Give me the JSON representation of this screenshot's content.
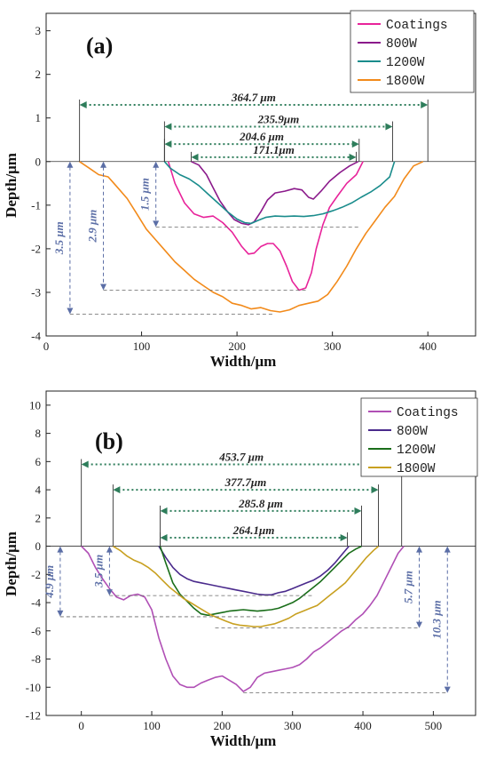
{
  "chart_data": [
    {
      "type": "line",
      "panel_label": "(a)",
      "xlabel": "Width/μm",
      "ylabel": "Depth/μm",
      "xlim": [
        0,
        450
      ],
      "ylim": [
        -4,
        3.4
      ],
      "xticks": [
        0,
        100,
        200,
        300,
        400
      ],
      "yticks": [
        -4,
        -3,
        -2,
        -1,
        0,
        1,
        2,
        3
      ],
      "legend_position": "top-right",
      "legend": [
        "Coatings",
        "800W",
        "1200W",
        "1800W"
      ],
      "series": [
        {
          "name": "Coatings",
          "color": "#e8239a",
          "x": [
            128,
            135,
            145,
            155,
            165,
            175,
            185,
            195,
            205,
            212,
            218,
            225,
            232,
            238,
            245,
            252,
            258,
            265,
            272,
            278,
            283,
            290,
            297,
            305,
            315,
            325,
            332
          ],
          "y": [
            0,
            -0.5,
            -0.95,
            -1.2,
            -1.28,
            -1.25,
            -1.4,
            -1.62,
            -1.95,
            -2.12,
            -2.1,
            -1.95,
            -1.88,
            -1.88,
            -2.05,
            -2.4,
            -2.75,
            -2.95,
            -2.9,
            -2.55,
            -2.0,
            -1.45,
            -1.05,
            -0.8,
            -0.5,
            -0.3,
            0
          ]
        },
        {
          "name": "800W",
          "color": "#8b1a8b",
          "x": [
            152,
            160,
            168,
            175,
            182,
            190,
            197,
            205,
            212,
            218,
            225,
            232,
            240,
            250,
            260,
            268,
            275,
            280,
            288,
            297,
            308,
            318,
            327
          ],
          "y": [
            0,
            -0.08,
            -0.3,
            -0.6,
            -0.9,
            -1.15,
            -1.33,
            -1.42,
            -1.45,
            -1.38,
            -1.15,
            -0.88,
            -0.72,
            -0.68,
            -0.62,
            -0.65,
            -0.82,
            -0.86,
            -0.68,
            -0.45,
            -0.25,
            -0.1,
            0
          ]
        },
        {
          "name": "1200W",
          "color": "#1a8c8c",
          "x": [
            124,
            130,
            140,
            150,
            160,
            170,
            180,
            190,
            200,
            208,
            215,
            222,
            230,
            240,
            250,
            260,
            270,
            280,
            290,
            300,
            310,
            320,
            330,
            340,
            350,
            360,
            365
          ],
          "y": [
            0,
            -0.15,
            -0.3,
            -0.4,
            -0.55,
            -0.75,
            -0.95,
            -1.15,
            -1.32,
            -1.4,
            -1.42,
            -1.35,
            -1.28,
            -1.25,
            -1.26,
            -1.25,
            -1.26,
            -1.24,
            -1.2,
            -1.13,
            -1.05,
            -0.95,
            -0.82,
            -0.7,
            -0.55,
            -0.35,
            0
          ]
        },
        {
          "name": "1800W",
          "color": "#f28a1a",
          "x": [
            35,
            45,
            55,
            65,
            75,
            85,
            95,
            105,
            115,
            125,
            135,
            145,
            155,
            165,
            175,
            185,
            195,
            205,
            215,
            225,
            235,
            245,
            255,
            265,
            275,
            285,
            295,
            305,
            315,
            325,
            335,
            345,
            355,
            365,
            375,
            385,
            395
          ],
          "y": [
            0,
            -0.15,
            -0.3,
            -0.35,
            -0.6,
            -0.85,
            -1.2,
            -1.55,
            -1.8,
            -2.05,
            -2.3,
            -2.5,
            -2.7,
            -2.85,
            -3.0,
            -3.1,
            -3.25,
            -3.3,
            -3.38,
            -3.35,
            -3.42,
            -3.45,
            -3.4,
            -3.3,
            -3.25,
            -3.2,
            -3.05,
            -2.75,
            -2.4,
            -2.0,
            -1.65,
            -1.35,
            -1.05,
            -0.8,
            -0.4,
            -0.1,
            0
          ]
        }
      ],
      "annotations": {
        "widths": [
          {
            "label": "364.7 μm",
            "x1": 35,
            "x2": 400,
            "y": 1.3
          },
          {
            "label": "235.9μm",
            "x1": 124,
            "x2": 363,
            "y": 0.8
          },
          {
            "label": "204.6 μm",
            "x1": 124,
            "x2": 328,
            "y": 0.4
          },
          {
            "label": "171.1μm",
            "x1": 152,
            "x2": 325,
            "y": 0.1
          }
        ],
        "depths": [
          {
            "label": "3.5 μm",
            "x": 25,
            "y": -3.5
          },
          {
            "label": "2.9 μm",
            "x": 60,
            "y": -2.95
          },
          {
            "label": "1.5 μm",
            "x": 115,
            "y": -1.5
          }
        ]
      }
    },
    {
      "type": "line",
      "panel_label": "(b)",
      "xlabel": "Width/μm",
      "ylabel": "Depth/μm",
      "xlim": [
        -50,
        560
      ],
      "ylim": [
        -12,
        11
      ],
      "xticks": [
        0,
        100,
        200,
        300,
        400,
        500
      ],
      "yticks": [
        -12,
        -10,
        -8,
        -6,
        -4,
        -2,
        0,
        2,
        4,
        6,
        8,
        10
      ],
      "legend_position": "top-right",
      "legend": [
        "Coatings",
        "800W",
        "1200W",
        "1800W"
      ],
      "series": [
        {
          "name": "Coatings",
          "color": "#b04fb5",
          "x": [
            0,
            10,
            20,
            30,
            40,
            50,
            60,
            70,
            80,
            90,
            100,
            110,
            120,
            130,
            140,
            150,
            160,
            170,
            180,
            190,
            200,
            210,
            220,
            230,
            240,
            250,
            260,
            270,
            280,
            290,
            300,
            310,
            320,
            330,
            340,
            350,
            360,
            370,
            380,
            390,
            400,
            410,
            420,
            430,
            440,
            450,
            458
          ],
          "y": [
            0,
            -0.5,
            -1.5,
            -2.3,
            -3.0,
            -3.6,
            -3.8,
            -3.5,
            -3.4,
            -3.6,
            -4.5,
            -6.5,
            -8.0,
            -9.2,
            -9.8,
            -10.0,
            -10.0,
            -9.7,
            -9.5,
            -9.3,
            -9.2,
            -9.5,
            -9.8,
            -10.3,
            -10.0,
            -9.3,
            -9.0,
            -8.9,
            -8.8,
            -8.7,
            -8.6,
            -8.4,
            -8.0,
            -7.5,
            -7.2,
            -6.8,
            -6.4,
            -6.0,
            -5.7,
            -5.2,
            -4.8,
            -4.2,
            -3.5,
            -2.5,
            -1.5,
            -0.5,
            0
          ]
        },
        {
          "name": "800W",
          "color": "#4a2a8c",
          "x": [
            110,
            120,
            130,
            140,
            150,
            160,
            170,
            180,
            190,
            200,
            210,
            220,
            230,
            240,
            250,
            260,
            270,
            280,
            290,
            300,
            310,
            320,
            330,
            340,
            350,
            360,
            370,
            380
          ],
          "y": [
            0,
            -0.8,
            -1.5,
            -2.0,
            -2.3,
            -2.5,
            -2.6,
            -2.7,
            -2.8,
            -2.9,
            -3.0,
            -3.1,
            -3.2,
            -3.3,
            -3.4,
            -3.45,
            -3.45,
            -3.3,
            -3.2,
            -3.0,
            -2.8,
            -2.6,
            -2.4,
            -2.1,
            -1.7,
            -1.2,
            -0.6,
            0
          ]
        },
        {
          "name": "1200W",
          "color": "#1a6e1a",
          "x": [
            112,
            120,
            130,
            140,
            150,
            160,
            170,
            180,
            190,
            200,
            210,
            220,
            230,
            240,
            250,
            260,
            270,
            280,
            290,
            300,
            310,
            320,
            330,
            340,
            350,
            360,
            370,
            380,
            390,
            398
          ],
          "y": [
            0,
            -1.2,
            -2.6,
            -3.4,
            -3.9,
            -4.4,
            -4.8,
            -4.9,
            -4.8,
            -4.7,
            -4.6,
            -4.55,
            -4.5,
            -4.55,
            -4.6,
            -4.55,
            -4.5,
            -4.4,
            -4.2,
            -4.0,
            -3.7,
            -3.3,
            -2.9,
            -2.5,
            -2.0,
            -1.5,
            -1.0,
            -0.5,
            -0.2,
            0
          ]
        },
        {
          "name": "1800W",
          "color": "#c8a020",
          "x": [
            45,
            55,
            65,
            75,
            85,
            95,
            105,
            115,
            125,
            135,
            145,
            155,
            165,
            175,
            185,
            195,
            205,
            215,
            225,
            235,
            245,
            255,
            265,
            275,
            285,
            295,
            305,
            315,
            325,
            335,
            345,
            355,
            365,
            375,
            385,
            395,
            405,
            415,
            422
          ],
          "y": [
            0,
            -0.3,
            -0.7,
            -1.0,
            -1.2,
            -1.5,
            -1.9,
            -2.4,
            -2.9,
            -3.3,
            -3.7,
            -4.0,
            -4.3,
            -4.6,
            -4.9,
            -5.1,
            -5.3,
            -5.5,
            -5.6,
            -5.65,
            -5.7,
            -5.7,
            -5.6,
            -5.5,
            -5.3,
            -5.1,
            -4.8,
            -4.6,
            -4.4,
            -4.2,
            -3.8,
            -3.4,
            -3.0,
            -2.6,
            -2.0,
            -1.4,
            -0.8,
            -0.3,
            0
          ]
        }
      ],
      "annotations": {
        "widths": [
          {
            "label": "453.7 μm",
            "x1": 0,
            "x2": 455,
            "y": 5.8
          },
          {
            "label": "377.7μm",
            "x1": 45,
            "x2": 422,
            "y": 4.0
          },
          {
            "label": "285.8 μm",
            "x1": 112,
            "x2": 398,
            "y": 2.5
          },
          {
            "label": "264.1μm",
            "x1": 112,
            "x2": 378,
            "y": 0.6
          }
        ],
        "depths": [
          {
            "label": "4.9 μm",
            "x": -30,
            "y": -5.0
          },
          {
            "label": "3.5 μm",
            "x": 40,
            "y": -3.5
          },
          {
            "label": "5.7 μm",
            "x": 480,
            "y": -5.8
          },
          {
            "label": "10.3 μm",
            "x": 520,
            "y": -10.4
          }
        ]
      }
    }
  ]
}
